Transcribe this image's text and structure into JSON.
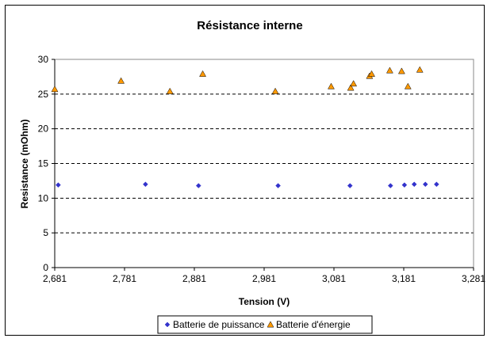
{
  "chart_data": {
    "type": "scatter",
    "title": "Résistance interne",
    "xlabel": "Tension (V)",
    "ylabel": "Resistance (mOhm)",
    "xlim": [
      2.681,
      3.281
    ],
    "ylim": [
      0,
      30
    ],
    "x_ticks": [
      2.681,
      2.781,
      2.881,
      2.981,
      3.081,
      3.181,
      3.281
    ],
    "x_tick_labels": [
      "2,681",
      "2,781",
      "2,881",
      "2,981",
      "3,081",
      "3,181",
      "3,281"
    ],
    "y_ticks": [
      0,
      5,
      10,
      15,
      20,
      25,
      30
    ],
    "y_tick_labels": [
      "0",
      "5",
      "10",
      "15",
      "20",
      "25",
      "30"
    ],
    "grid": "horizontal dashed",
    "legend_position": "bottom",
    "series": [
      {
        "name": "Batterie de puissance",
        "color": "#3333cc",
        "marker": "diamond",
        "x": [
          2.686,
          2.811,
          2.887,
          3.001,
          3.104,
          3.162,
          3.182,
          3.196,
          3.212,
          3.228
        ],
        "y": [
          11.9,
          12.0,
          11.8,
          11.8,
          11.8,
          11.8,
          11.9,
          12.0,
          12.0,
          12.0
        ]
      },
      {
        "name": "Batterie d'énergie",
        "color": "#ff9900",
        "marker": "triangle",
        "x": [
          2.681,
          2.776,
          2.846,
          2.893,
          2.997,
          3.077,
          3.105,
          3.109,
          3.132,
          3.135,
          3.161,
          3.178,
          3.187,
          3.204
        ],
        "y": [
          25.7,
          26.9,
          25.4,
          27.9,
          25.4,
          26.1,
          25.9,
          26.5,
          27.6,
          27.9,
          28.4,
          28.3,
          26.1,
          28.5
        ]
      }
    ]
  }
}
